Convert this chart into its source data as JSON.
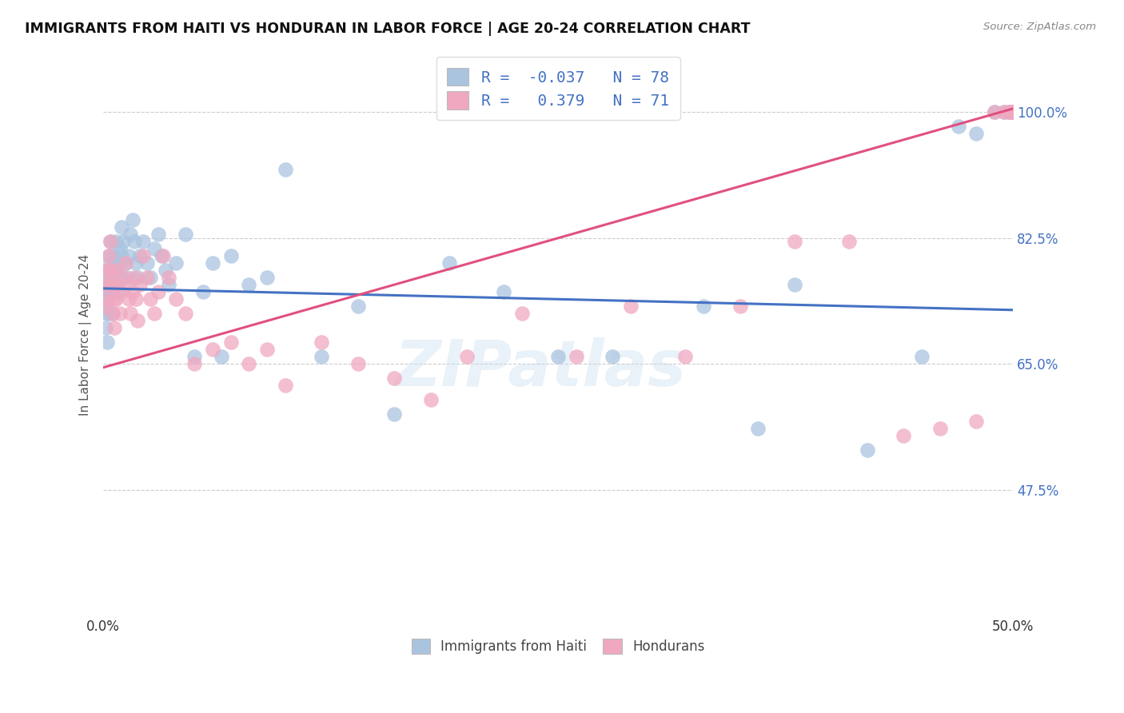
{
  "title": "IMMIGRANTS FROM HAITI VS HONDURAN IN LABOR FORCE | AGE 20-24 CORRELATION CHART",
  "source": "Source: ZipAtlas.com",
  "ylabel_label": "In Labor Force | Age 20-24",
  "x_min": 0.0,
  "x_max": 0.5,
  "y_min": 0.3,
  "y_max": 1.08,
  "yticks": [
    0.475,
    0.65,
    0.825,
    1.0
  ],
  "ytick_labels": [
    "47.5%",
    "65.0%",
    "82.5%",
    "100.0%"
  ],
  "xticks": [
    0.0,
    0.1,
    0.2,
    0.3,
    0.4,
    0.5
  ],
  "xtick_labels": [
    "0.0%",
    "",
    "",
    "",
    "",
    "50.0%"
  ],
  "haiti_color": "#aac4e0",
  "honduras_color": "#f0a8c0",
  "haiti_line_color": "#4472c4",
  "honduras_line_color": "#e05080",
  "R_haiti": -0.037,
  "N_haiti": 78,
  "R_honduras": 0.379,
  "N_honduras": 71,
  "watermark": "ZIPatlas",
  "haiti_line_x0": 0.0,
  "haiti_line_y0": 0.755,
  "haiti_line_x1": 0.5,
  "haiti_line_y1": 0.725,
  "honduras_line_x0": 0.0,
  "honduras_line_y0": 0.645,
  "honduras_line_x1": 0.5,
  "honduras_line_y1": 1.005,
  "haiti_x": [
    0.001,
    0.001,
    0.001,
    0.001,
    0.002,
    0.002,
    0.002,
    0.002,
    0.003,
    0.003,
    0.003,
    0.003,
    0.004,
    0.004,
    0.004,
    0.005,
    0.005,
    0.005,
    0.006,
    0.006,
    0.007,
    0.007,
    0.008,
    0.008,
    0.009,
    0.009,
    0.01,
    0.01,
    0.011,
    0.012,
    0.013,
    0.014,
    0.015,
    0.016,
    0.017,
    0.018,
    0.019,
    0.02,
    0.022,
    0.024,
    0.026,
    0.028,
    0.03,
    0.032,
    0.034,
    0.036,
    0.04,
    0.045,
    0.05,
    0.055,
    0.06,
    0.065,
    0.07,
    0.08,
    0.09,
    0.1,
    0.12,
    0.14,
    0.16,
    0.19,
    0.22,
    0.25,
    0.28,
    0.33,
    0.36,
    0.38,
    0.42,
    0.45,
    0.47,
    0.48,
    0.49,
    0.495,
    0.498,
    0.499,
    0.4995,
    0.4998,
    0.4999,
    0.4999
  ],
  "haiti_y": [
    0.75,
    0.77,
    0.73,
    0.7,
    0.76,
    0.74,
    0.72,
    0.68,
    0.8,
    0.78,
    0.75,
    0.72,
    0.82,
    0.79,
    0.76,
    0.78,
    0.75,
    0.72,
    0.8,
    0.76,
    0.82,
    0.78,
    0.79,
    0.75,
    0.81,
    0.77,
    0.84,
    0.8,
    0.82,
    0.79,
    0.77,
    0.8,
    0.83,
    0.85,
    0.82,
    0.79,
    0.77,
    0.8,
    0.82,
    0.79,
    0.77,
    0.81,
    0.83,
    0.8,
    0.78,
    0.76,
    0.79,
    0.83,
    0.66,
    0.75,
    0.79,
    0.66,
    0.8,
    0.76,
    0.77,
    0.92,
    0.66,
    0.73,
    0.58,
    0.79,
    0.75,
    0.66,
    0.66,
    0.73,
    0.56,
    0.76,
    0.53,
    0.66,
    0.98,
    0.97,
    1.0,
    1.0,
    1.0,
    1.0,
    1.0,
    1.0,
    1.0,
    1.0
  ],
  "honduras_x": [
    0.001,
    0.001,
    0.002,
    0.002,
    0.003,
    0.003,
    0.004,
    0.004,
    0.005,
    0.005,
    0.006,
    0.006,
    0.007,
    0.007,
    0.008,
    0.009,
    0.01,
    0.011,
    0.012,
    0.013,
    0.014,
    0.015,
    0.016,
    0.017,
    0.018,
    0.019,
    0.02,
    0.022,
    0.024,
    0.026,
    0.028,
    0.03,
    0.033,
    0.036,
    0.04,
    0.045,
    0.05,
    0.06,
    0.07,
    0.08,
    0.09,
    0.1,
    0.12,
    0.14,
    0.16,
    0.18,
    0.2,
    0.23,
    0.26,
    0.29,
    0.32,
    0.35,
    0.38,
    0.41,
    0.44,
    0.46,
    0.48,
    0.49,
    0.495,
    0.498,
    0.499,
    0.4995,
    0.4998,
    0.4999,
    0.4999,
    0.4999,
    0.4999,
    0.4999,
    0.4999,
    0.4999,
    0.4999
  ],
  "honduras_y": [
    0.76,
    0.73,
    0.78,
    0.74,
    0.8,
    0.76,
    0.82,
    0.78,
    0.76,
    0.72,
    0.74,
    0.7,
    0.78,
    0.74,
    0.76,
    0.72,
    0.75,
    0.77,
    0.79,
    0.76,
    0.74,
    0.72,
    0.75,
    0.77,
    0.74,
    0.71,
    0.76,
    0.8,
    0.77,
    0.74,
    0.72,
    0.75,
    0.8,
    0.77,
    0.74,
    0.72,
    0.65,
    0.67,
    0.68,
    0.65,
    0.67,
    0.62,
    0.68,
    0.65,
    0.63,
    0.6,
    0.66,
    0.72,
    0.66,
    0.73,
    0.66,
    0.73,
    0.82,
    0.82,
    0.55,
    0.56,
    0.57,
    1.0,
    1.0,
    1.0,
    1.0,
    1.0,
    1.0,
    1.0,
    1.0,
    1.0,
    1.0,
    1.0,
    1.0,
    1.0,
    1.0
  ]
}
